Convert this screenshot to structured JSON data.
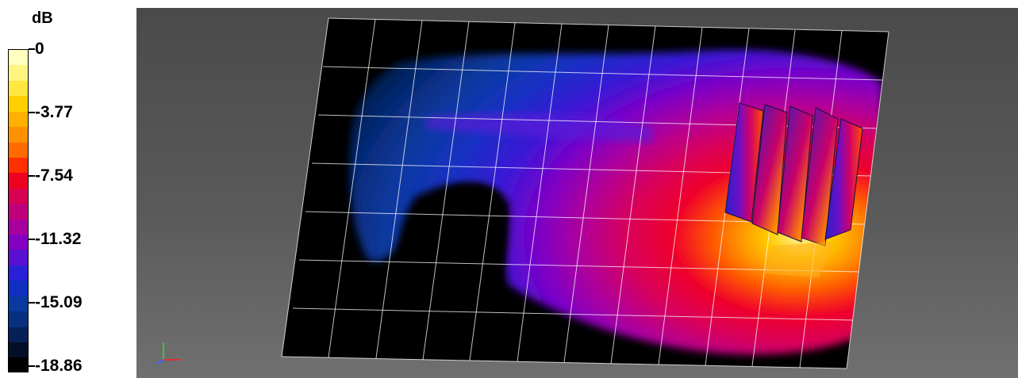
{
  "legend": {
    "unit": "dB",
    "tick_labels": [
      "0",
      "-3.77",
      "-7.54",
      "-11.32",
      "-15.09",
      "-18.86"
    ],
    "colors": [
      "#ffffc0",
      "#fff480",
      "#ffe640",
      "#ffd000",
      "#ffb000",
      "#ff9000",
      "#ff6a00",
      "#ff3000",
      "#ee0020",
      "#d80050",
      "#c0007a",
      "#a8009e",
      "#8400c0",
      "#5a10d0",
      "#2a20d8",
      "#1030c0",
      "#0a3aa0",
      "#073080",
      "#062058",
      "#050e28",
      "#000000"
    ]
  },
  "viewport": {
    "axes_icon": "xyz-axes-icon"
  }
}
